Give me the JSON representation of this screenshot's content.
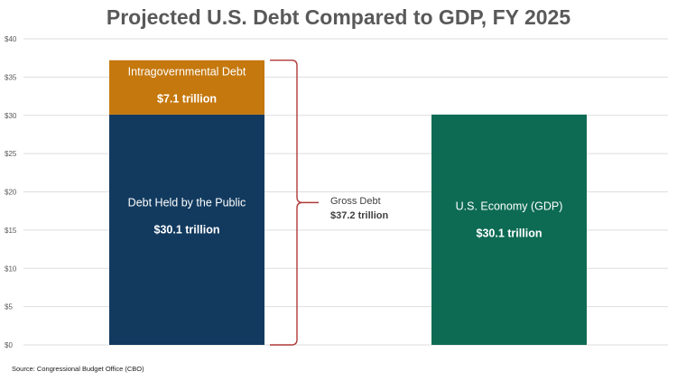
{
  "title": "Projected U.S. Debt Compared to GDP, FY 2025",
  "source": "Source: Congressional Budget Office (CBO)",
  "chart_data": {
    "type": "bar",
    "stacked": true,
    "title": "Projected U.S. Debt Compared to GDP, FY 2025",
    "xlabel": "",
    "ylabel": "",
    "ylim": [
      0,
      40
    ],
    "y_ticks": [
      0,
      5,
      10,
      15,
      20,
      25,
      30,
      35,
      40
    ],
    "y_tick_labels": [
      "$0",
      "$5",
      "$10",
      "$15",
      "$20",
      "$25",
      "$30",
      "$35",
      "$40"
    ],
    "grid": true,
    "legend": "none",
    "categories": [
      "Gross Debt",
      "U.S. Economy (GDP)"
    ],
    "bars": [
      {
        "segments": [
          {
            "label": "Debt Held by the Public",
            "value": 30.1,
            "value_label": "$30.1 trillion",
            "color": "#123a5f"
          },
          {
            "label": "Intragovernmental Debt",
            "value": 7.1,
            "value_label": "$7.1 trillion",
            "color": "#c5780e"
          }
        ]
      },
      {
        "segments": [
          {
            "label": "U.S. Economy (GDP)",
            "value": 30.1,
            "value_label": "$30.1 trillion",
            "color": "#0d6b54"
          }
        ]
      }
    ],
    "bracket": {
      "label": "Gross Debt",
      "value": 37.2,
      "value_label": "$37.2 trillion",
      "color": "#b03a3a"
    }
  }
}
